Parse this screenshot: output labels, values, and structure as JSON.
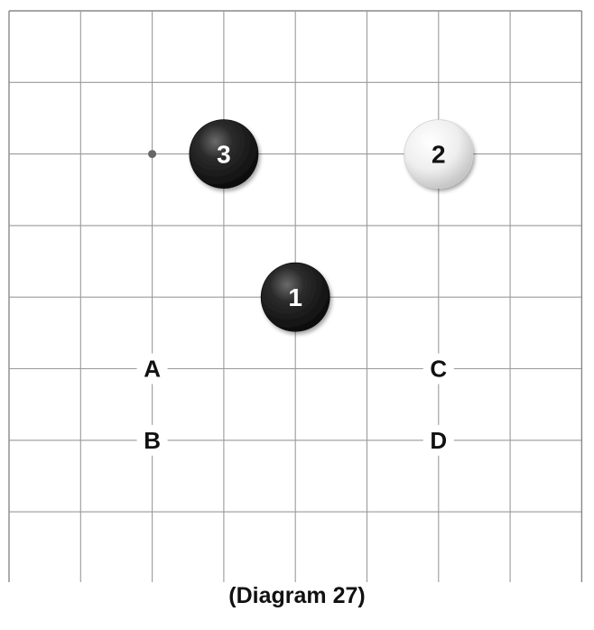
{
  "caption": "(Diagram 27)",
  "colors": {
    "grid_line": "#9a9a9a",
    "border": "#888888",
    "black_stone": "#1b1b1b",
    "white_stone": "#f2f2f2",
    "label_text": "#111111",
    "hoshi": "#666666"
  },
  "stones": [
    {
      "number": "1",
      "color": "black",
      "col": 4,
      "row": 4
    },
    {
      "number": "2",
      "color": "white",
      "col": 6,
      "row": 2
    },
    {
      "number": "3",
      "color": "black",
      "col": 3,
      "row": 2
    }
  ],
  "labels": [
    {
      "text": "A",
      "col": 2,
      "row": 5
    },
    {
      "text": "B",
      "col": 2,
      "row": 6
    },
    {
      "text": "C",
      "col": 6,
      "row": 5
    },
    {
      "text": "D",
      "col": 6,
      "row": 6
    }
  ],
  "hoshi": [
    {
      "col": 2,
      "row": 2
    }
  ]
}
